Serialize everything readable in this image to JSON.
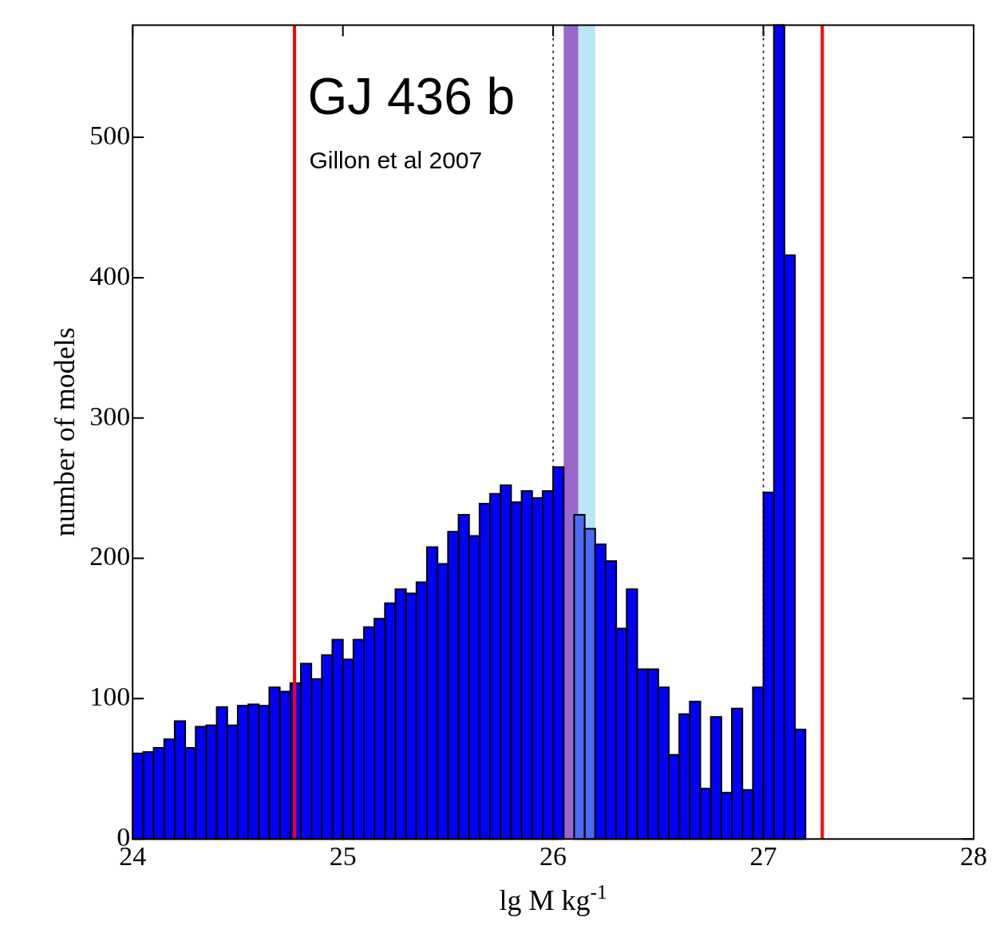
{
  "chart_data": {
    "type": "histogram",
    "title": "GJ 436 b",
    "annotations": [
      "Gillon et al 2007"
    ],
    "xlabel": "lg M kg$^{-1}$",
    "ylabel": "number of models",
    "bins": [
      24,
      24.05,
      24.1,
      24.15,
      24.2,
      24.25,
      24.3,
      24.35,
      24.4,
      24.45,
      24.5,
      24.55,
      24.6,
      24.65,
      24.7,
      24.75,
      24.8,
      24.85,
      24.9,
      24.95,
      25,
      25.05,
      25.1,
      25.15,
      25.2,
      25.25,
      25.3,
      25.35,
      25.4,
      25.45,
      25.5,
      25.55,
      25.6,
      25.65,
      25.7,
      25.75,
      25.8,
      25.85,
      25.9,
      25.95,
      26,
      26.05,
      26.1,
      26.15,
      26.2,
      26.25,
      26.3,
      26.35,
      26.4,
      26.45,
      26.5,
      26.55,
      26.6,
      26.65,
      26.7,
      26.75,
      26.8,
      26.85,
      26.9,
      26.95,
      27,
      27.05,
      27.1,
      27.15,
      27.2
    ],
    "values": [
      61,
      62,
      65,
      71,
      84,
      65,
      80,
      81,
      94,
      81,
      95,
      96,
      95,
      108,
      105,
      111,
      125,
      114,
      131,
      142,
      128,
      142,
      151,
      157,
      168,
      178,
      175,
      183,
      208,
      196,
      219,
      231,
      216,
      239,
      246,
      252,
      240,
      248,
      243,
      248,
      265,
      null,
      231,
      221,
      210,
      198,
      150,
      178,
      121,
      121,
      108,
      60,
      89,
      98,
      36,
      87,
      33,
      93,
      35,
      108,
      247,
      580,
      416,
      78
    ],
    "colors": [
      "#0000ff",
      "#0000ff",
      "#0000ff",
      "#0000ff",
      "#0000ff",
      "#0000ff",
      "#0000ff",
      "#0000ff",
      "#0000ff",
      "#0000ff",
      "#0000ff",
      "#0000ff",
      "#0000ff",
      "#0000ff",
      "#0000ff",
      "#0000ff",
      "#0000ff",
      "#0000ff",
      "#0000ff",
      "#0000ff",
      "#0000ff",
      "#0000ff",
      "#0000ff",
      "#0000ff",
      "#0000ff",
      "#0000ff",
      "#0000ff",
      "#0000ff",
      "#0000ff",
      "#0000ff",
      "#0000ff",
      "#0000ff",
      "#0000ff",
      "#0000ff",
      "#0000ff",
      "#0000ff",
      "#0000ff",
      "#0000ff",
      "#0000ff",
      "#0000ff",
      "#0000ff",
      "#0000ff",
      "#4a6cf5",
      "#4a6cf5",
      "#0000ff",
      "#0000ff",
      "#0000ff",
      "#0000ff",
      "#0000ff",
      "#0000ff",
      "#0000ff",
      "#0000ff",
      "#0000ff",
      "#0000ff",
      "#0000ff",
      "#0000ff",
      "#0000ff",
      "#0000ff",
      "#0000ff",
      "#0000ff",
      "#0000ff",
      "#0000ff",
      "#0000ff",
      "#0000ff"
    ],
    "xlim": [
      24,
      28
    ],
    "xticks": [
      24,
      25,
      26,
      27,
      28
    ],
    "ylim": [
      0,
      580
    ],
    "yticks": [
      0,
      100,
      200,
      300,
      400,
      500
    ],
    "bands": [
      {
        "axis": "x",
        "from": 26.05,
        "to": 26.12,
        "color": "#9966cc"
      },
      {
        "axis": "x",
        "from": 26.12,
        "to": 26.2,
        "color": "#b8e6f5"
      }
    ],
    "ref_lines": [
      {
        "axis": "x",
        "value": 24.77,
        "color": "#ff0000",
        "line_style": "solid"
      },
      {
        "axis": "x",
        "value": 27.28,
        "color": "#ff0000",
        "line_style": "solid"
      },
      {
        "axis": "x",
        "value": 26,
        "color": "#000000",
        "line_style": "dotted"
      },
      {
        "axis": "x",
        "value": 27,
        "color": "#000000",
        "line_style": "dotted"
      }
    ],
    "legend": false,
    "grid": false
  }
}
